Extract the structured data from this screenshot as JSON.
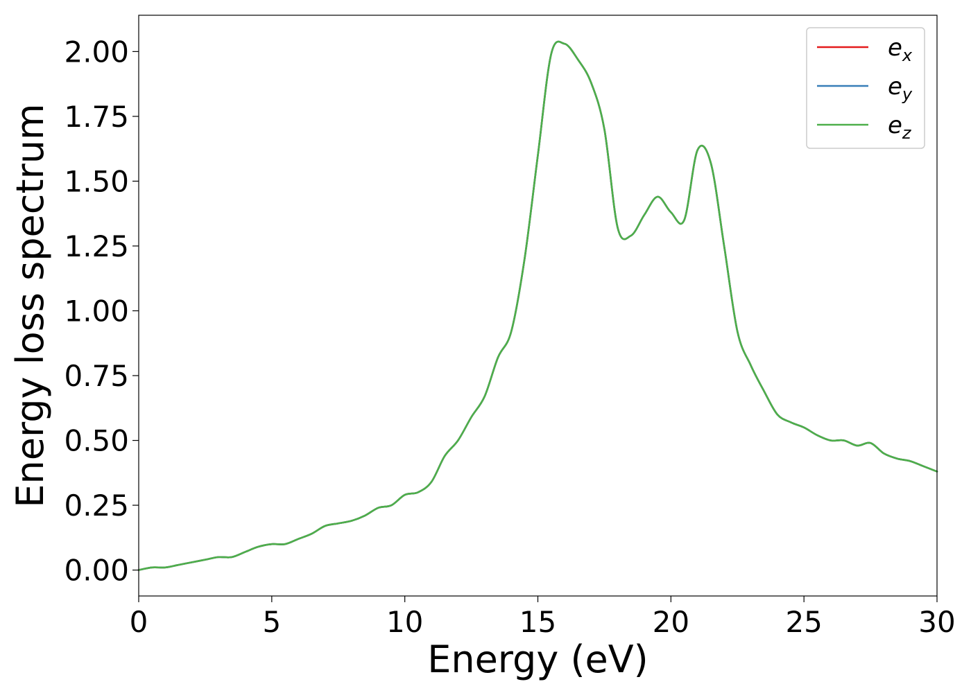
{
  "chart_data": {
    "type": "line",
    "title": "",
    "xlabel": "Energy (eV)",
    "ylabel": "Energy loss spectrum",
    "xlim": [
      0,
      30
    ],
    "ylim": [
      -0.1,
      2.14
    ],
    "xticks": [
      "0",
      "5",
      "10",
      "15",
      "20",
      "25",
      "30"
    ],
    "yticks": [
      "0.00",
      "0.25",
      "0.50",
      "0.75",
      "1.00",
      "1.25",
      "1.50",
      "1.75",
      "2.00"
    ],
    "grid": false,
    "legend_position": "top-right",
    "x": [
      0,
      0.5,
      1,
      1.5,
      2,
      2.5,
      3,
      3.5,
      4,
      4.5,
      5,
      5.5,
      6,
      6.5,
      7,
      7.5,
      8,
      8.5,
      9,
      9.5,
      10,
      10.5,
      11,
      11.5,
      12,
      12.5,
      13,
      13.5,
      14,
      14.5,
      15,
      15.5,
      16,
      16.5,
      17,
      17.5,
      18,
      18.5,
      19,
      19.5,
      20,
      20.5,
      21,
      21.5,
      22,
      22.5,
      23,
      23.5,
      24,
      24.5,
      25,
      25.5,
      26,
      26.5,
      27,
      27.5,
      28,
      28.5,
      29,
      29.5,
      30
    ],
    "series": [
      {
        "name": "e_x",
        "color": "#e41a1c",
        "values": [
          0.0,
          0.01,
          0.01,
          0.02,
          0.03,
          0.04,
          0.05,
          0.05,
          0.07,
          0.09,
          0.1,
          0.1,
          0.12,
          0.14,
          0.17,
          0.18,
          0.19,
          0.21,
          0.24,
          0.25,
          0.29,
          0.3,
          0.34,
          0.44,
          0.5,
          0.59,
          0.67,
          0.82,
          0.92,
          1.2,
          1.6,
          1.99,
          2.03,
          1.97,
          1.88,
          1.7,
          1.32,
          1.29,
          1.37,
          1.44,
          1.38,
          1.35,
          1.62,
          1.57,
          1.25,
          0.92,
          0.79,
          0.69,
          0.6,
          0.57,
          0.55,
          0.52,
          0.5,
          0.5,
          0.48,
          0.49,
          0.45,
          0.43,
          0.42,
          0.4,
          0.38
        ]
      },
      {
        "name": "e_y",
        "color": "#377eb8",
        "values": [
          0.0,
          0.01,
          0.01,
          0.02,
          0.03,
          0.04,
          0.05,
          0.05,
          0.07,
          0.09,
          0.1,
          0.1,
          0.12,
          0.14,
          0.17,
          0.18,
          0.19,
          0.21,
          0.24,
          0.25,
          0.29,
          0.3,
          0.34,
          0.44,
          0.5,
          0.59,
          0.67,
          0.82,
          0.92,
          1.2,
          1.6,
          1.99,
          2.03,
          1.97,
          1.88,
          1.7,
          1.32,
          1.29,
          1.37,
          1.44,
          1.38,
          1.35,
          1.62,
          1.57,
          1.25,
          0.92,
          0.79,
          0.69,
          0.6,
          0.57,
          0.55,
          0.52,
          0.5,
          0.5,
          0.48,
          0.49,
          0.45,
          0.43,
          0.42,
          0.4,
          0.38
        ]
      },
      {
        "name": "e_z",
        "color": "#4daf4a",
        "values": [
          0.0,
          0.01,
          0.01,
          0.02,
          0.03,
          0.04,
          0.05,
          0.05,
          0.07,
          0.09,
          0.1,
          0.1,
          0.12,
          0.14,
          0.17,
          0.18,
          0.19,
          0.21,
          0.24,
          0.25,
          0.29,
          0.3,
          0.34,
          0.44,
          0.5,
          0.59,
          0.67,
          0.82,
          0.92,
          1.2,
          1.6,
          1.99,
          2.03,
          1.97,
          1.88,
          1.7,
          1.32,
          1.29,
          1.37,
          1.44,
          1.38,
          1.35,
          1.62,
          1.57,
          1.25,
          0.92,
          0.79,
          0.69,
          0.6,
          0.57,
          0.55,
          0.52,
          0.5,
          0.5,
          0.48,
          0.49,
          0.45,
          0.43,
          0.42,
          0.4,
          0.38
        ]
      }
    ],
    "legend": [
      {
        "base": "e",
        "sub": "x"
      },
      {
        "base": "e",
        "sub": "y"
      },
      {
        "base": "e",
        "sub": "z"
      }
    ]
  }
}
